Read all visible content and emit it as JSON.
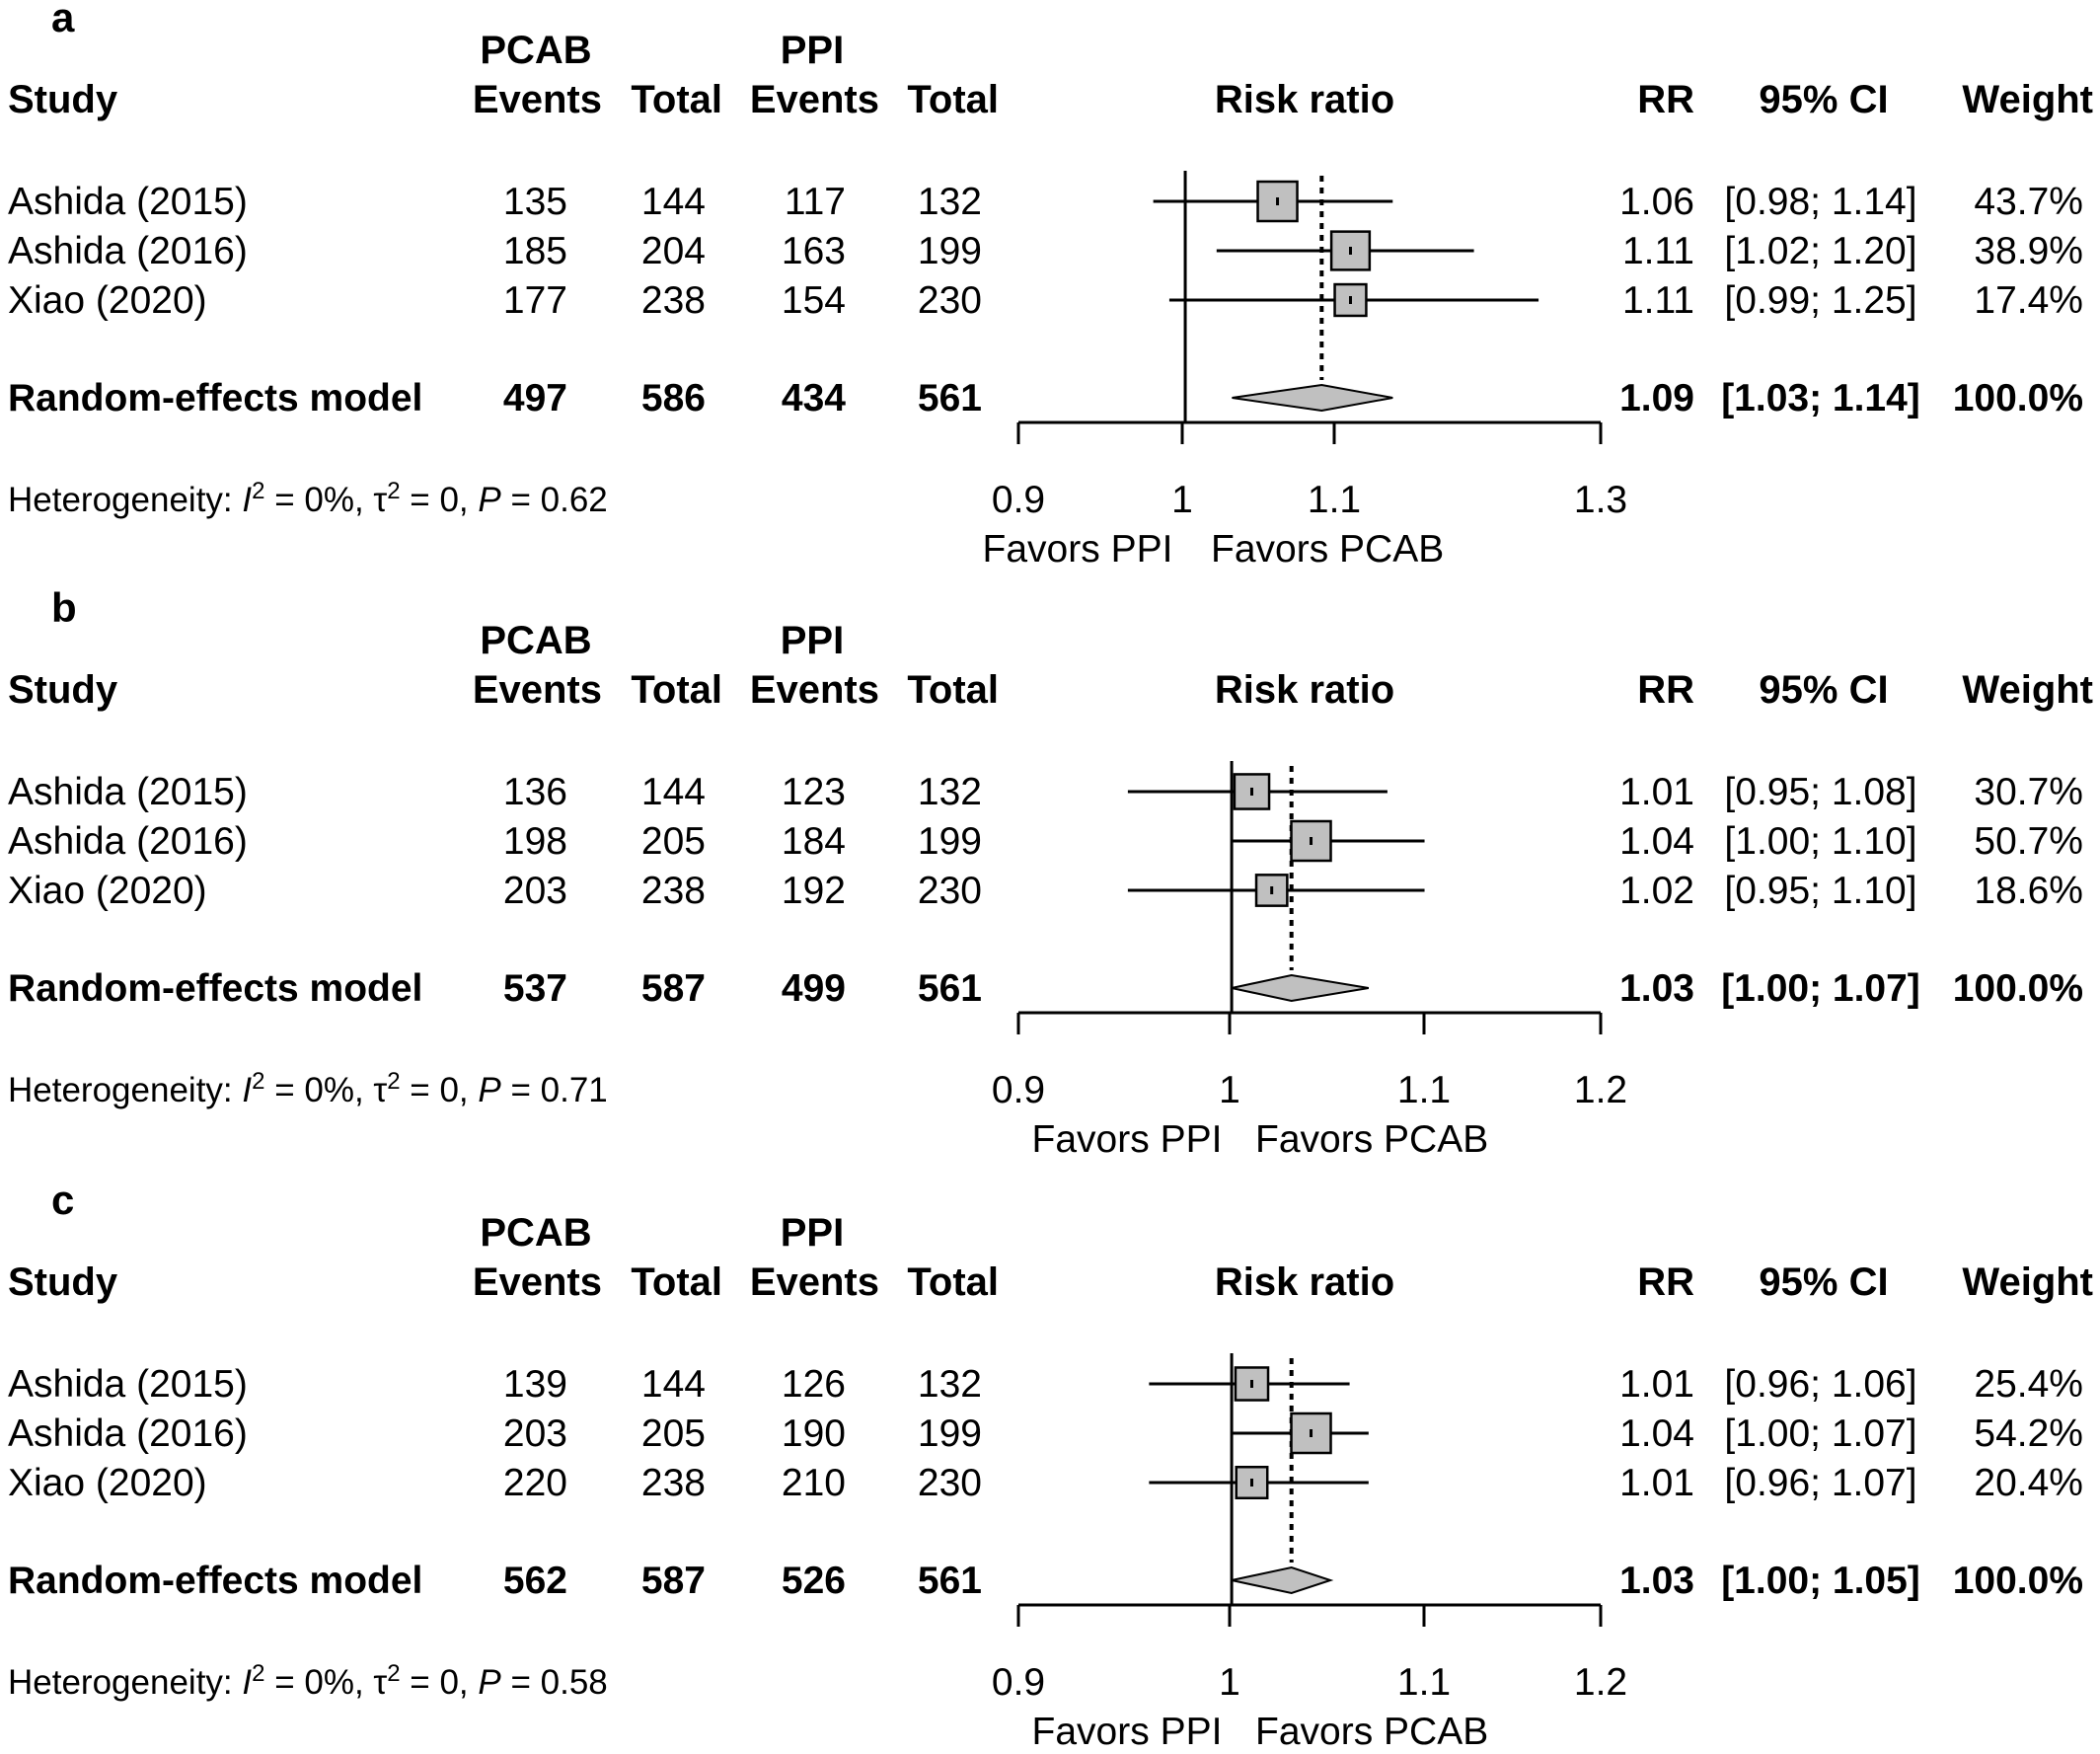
{
  "colors": {
    "box_fill": "#c0c0c0",
    "diamond_fill": "#c0c0c0",
    "stroke": "#000000",
    "background": "#ffffff"
  },
  "headers": {
    "study": "Study",
    "group1": "PCAB",
    "group2": "PPI",
    "events": "Events",
    "total": "Total",
    "plot": "Risk ratio",
    "rr": "RR",
    "ci": "95% CI",
    "weight": "Weight"
  },
  "favors": {
    "left": "Favors PPI",
    "right": "Favors PCAB"
  },
  "chart_data": [
    {
      "type": "forest",
      "panel": "a",
      "xlabel": "Risk ratio",
      "x_scale": "log",
      "xlim": [
        0.9,
        1.3
      ],
      "ticks": [
        "0.9",
        "1",
        "1.1",
        "1.3"
      ],
      "null_line": 1,
      "studies": [
        {
          "name": "Ashida (2015)",
          "e1": "135",
          "n1": "144",
          "e2": "117",
          "n2": "132",
          "rr": 1.06,
          "lo": 0.98,
          "hi": 1.14,
          "rr_text": "1.06",
          "ci_text": "[0.98; 1.14]",
          "weight_text": "43.7%",
          "weight": 43.7
        },
        {
          "name": "Ashida (2016)",
          "e1": "185",
          "n1": "204",
          "e2": "163",
          "n2": "199",
          "rr": 1.11,
          "lo": 1.02,
          "hi": 1.2,
          "rr_text": "1.11",
          "ci_text": "[1.02; 1.20]",
          "weight_text": "38.9%",
          "weight": 38.9
        },
        {
          "name": "Xiao (2020)",
          "e1": "177",
          "n1": "238",
          "e2": "154",
          "n2": "230",
          "rr": 1.11,
          "lo": 0.99,
          "hi": 1.25,
          "rr_text": "1.11",
          "ci_text": "[0.99; 1.25]",
          "weight_text": "17.4%",
          "weight": 17.4
        }
      ],
      "pooled": {
        "name": "Random-effects model",
        "e1": "497",
        "n1": "586",
        "e2": "434",
        "n2": "561",
        "rr": 1.09,
        "lo": 1.03,
        "hi": 1.14,
        "rr_text": "1.09",
        "ci_text": "[1.03; 1.14]",
        "weight_text": "100.0%"
      },
      "heterogeneity": {
        "prefix": "Heterogeneity: ",
        "i2": "I",
        "i2_rest": " = 0%, ",
        "tau": "τ",
        "tau_rest": " = 0, ",
        "p": "P",
        "p_rest": " = 0.62"
      }
    },
    {
      "type": "forest",
      "panel": "b",
      "xlabel": "Risk ratio",
      "x_scale": "log",
      "xlim": [
        0.9,
        1.2
      ],
      "ticks": [
        "0.9",
        "1",
        "1.1",
        "1.2"
      ],
      "null_line": 1,
      "studies": [
        {
          "name": "Ashida (2015)",
          "e1": "136",
          "n1": "144",
          "e2": "123",
          "n2": "132",
          "rr": 1.01,
          "lo": 0.95,
          "hi": 1.08,
          "rr_text": "1.01",
          "ci_text": "[0.95; 1.08]",
          "weight_text": "30.7%",
          "weight": 30.7
        },
        {
          "name": "Ashida (2016)",
          "e1": "198",
          "n1": "205",
          "e2": "184",
          "n2": "199",
          "rr": 1.04,
          "lo": 1.0,
          "hi": 1.1,
          "rr_text": "1.04",
          "ci_text": "[1.00; 1.10]",
          "weight_text": "50.7%",
          "weight": 50.7
        },
        {
          "name": "Xiao (2020)",
          "e1": "203",
          "n1": "238",
          "e2": "192",
          "n2": "230",
          "rr": 1.02,
          "lo": 0.95,
          "hi": 1.1,
          "rr_text": "1.02",
          "ci_text": "[0.95; 1.10]",
          "weight_text": "18.6%",
          "weight": 18.6
        }
      ],
      "pooled": {
        "name": "Random-effects model",
        "e1": "537",
        "n1": "587",
        "e2": "499",
        "n2": "561",
        "rr": 1.03,
        "lo": 1.0,
        "hi": 1.07,
        "rr_text": "1.03",
        "ci_text": "[1.00; 1.07]",
        "weight_text": "100.0%"
      },
      "heterogeneity": {
        "prefix": "Heterogeneity: ",
        "i2": "I",
        "i2_rest": " = 0%, ",
        "tau": "τ",
        "tau_rest": " = 0, ",
        "p": "P",
        "p_rest": " = 0.71"
      }
    },
    {
      "type": "forest",
      "panel": "c",
      "xlabel": "Risk ratio",
      "x_scale": "log",
      "xlim": [
        0.9,
        1.2
      ],
      "ticks": [
        "0.9",
        "1",
        "1.1",
        "1.2"
      ],
      "null_line": 1,
      "studies": [
        {
          "name": "Ashida (2015)",
          "e1": "139",
          "n1": "144",
          "e2": "126",
          "n2": "132",
          "rr": 1.01,
          "lo": 0.96,
          "hi": 1.06,
          "rr_text": "1.01",
          "ci_text": "[0.96; 1.06]",
          "weight_text": "25.4%",
          "weight": 25.4
        },
        {
          "name": "Ashida (2016)",
          "e1": "203",
          "n1": "205",
          "e2": "190",
          "n2": "199",
          "rr": 1.04,
          "lo": 1.0,
          "hi": 1.07,
          "rr_text": "1.04",
          "ci_text": "[1.00; 1.07]",
          "weight_text": "54.2%",
          "weight": 54.2
        },
        {
          "name": "Xiao (2020)",
          "e1": "220",
          "n1": "238",
          "e2": "210",
          "n2": "230",
          "rr": 1.01,
          "lo": 0.96,
          "hi": 1.07,
          "rr_text": "1.01",
          "ci_text": "[0.96; 1.07]",
          "weight_text": "20.4%",
          "weight": 20.4
        }
      ],
      "pooled": {
        "name": "Random-effects model",
        "e1": "562",
        "n1": "587",
        "e2": "526",
        "n2": "561",
        "rr": 1.03,
        "lo": 1.0,
        "hi": 1.05,
        "rr_text": "1.03",
        "ci_text": "[1.00; 1.05]",
        "weight_text": "100.0%"
      },
      "heterogeneity": {
        "prefix": "Heterogeneity: ",
        "i2": "I",
        "i2_rest": " = 0%, ",
        "tau": "τ",
        "tau_rest": " = 0, ",
        "p": "P",
        "p_rest": " = 0.58"
      }
    }
  ]
}
